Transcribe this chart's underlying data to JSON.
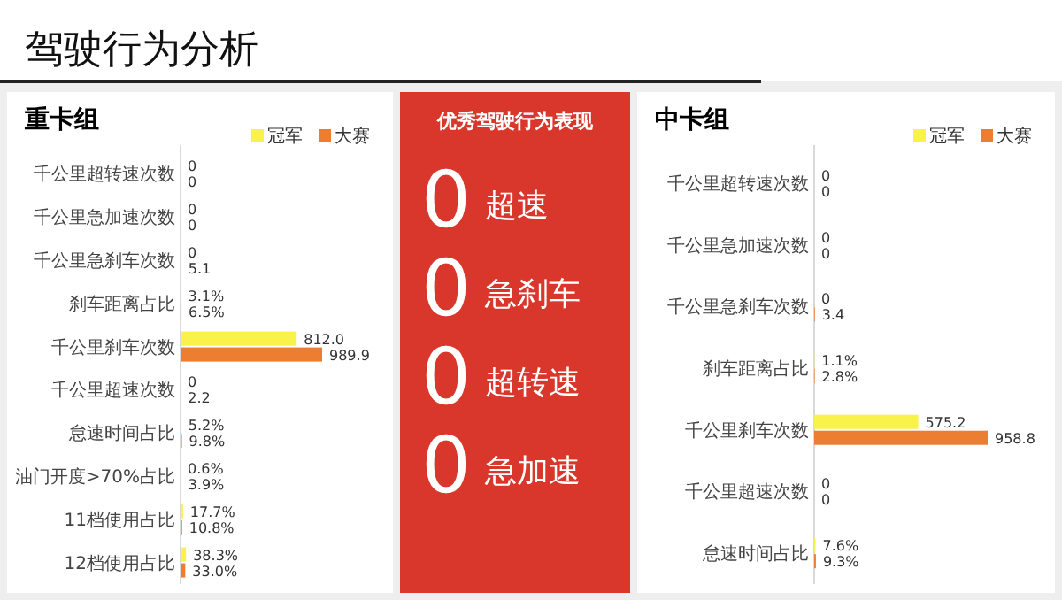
{
  "chart_data": [
    {
      "type": "bar",
      "orientation": "horizontal",
      "title": "重卡组",
      "annotations": [
        "驾驶行为分析"
      ],
      "legend": "top",
      "data_labels": true,
      "categories": [
        "千公里超转速次数",
        "千公里急加速次数",
        "千公里急刹车次数",
        "刹车距离占比",
        "千公里刹车次数",
        "千公里超速次数",
        "怠速时间占比",
        "油门开度>70%占比",
        "11档使用占比",
        "12档使用占比"
      ],
      "series": [
        {
          "name": "冠军",
          "color": "#f9f24a",
          "values": [
            0,
            0,
            0,
            3.1,
            812.0,
            0,
            5.2,
            0.6,
            17.7,
            38.3
          ],
          "value_labels": [
            "0",
            "0",
            "0",
            "3.1%",
            "812.0",
            "0",
            "5.2%",
            "0.6%",
            "17.7%",
            "38.3%"
          ]
        },
        {
          "name": "大赛",
          "color": "#ed7d31",
          "values": [
            0,
            0,
            5.1,
            6.5,
            989.9,
            2.2,
            9.8,
            3.9,
            10.8,
            33.0
          ],
          "value_labels": [
            "0",
            "0",
            "5.1",
            "6.5%",
            "989.9",
            "2.2",
            "9.8%",
            "3.9%",
            "10.8%",
            "33.0%"
          ]
        }
      ]
    },
    {
      "type": "other",
      "title": "优秀驾驶行为表现",
      "categories": [
        "超速",
        "急刹车",
        "超转速",
        "急加速"
      ],
      "values": [
        0,
        0,
        0,
        0
      ],
      "data_labels": true,
      "color": "#d9372b"
    },
    {
      "type": "bar",
      "orientation": "horizontal",
      "title": "中卡组",
      "legend": "top",
      "data_labels": true,
      "categories": [
        "千公里超转速次数",
        "千公里急加速次数",
        "千公里急刹车次数",
        "刹车距离占比",
        "千公里刹车次数",
        "千公里超速次数",
        "怠速时间占比"
      ],
      "series": [
        {
          "name": "冠军",
          "color": "#f9f24a",
          "values": [
            0,
            0,
            0,
            1.1,
            575.2,
            0,
            7.6
          ],
          "value_labels": [
            "0",
            "0",
            "0",
            "1.1%",
            "575.2",
            "0",
            "7.6%"
          ]
        },
        {
          "name": "大赛",
          "color": "#ed7d31",
          "values": [
            0,
            0,
            3.4,
            2.8,
            958.8,
            0,
            9.3
          ],
          "value_labels": [
            "0",
            "0",
            "3.4",
            "2.8%",
            "958.8",
            "0",
            "9.3%"
          ]
        }
      ]
    }
  ]
}
